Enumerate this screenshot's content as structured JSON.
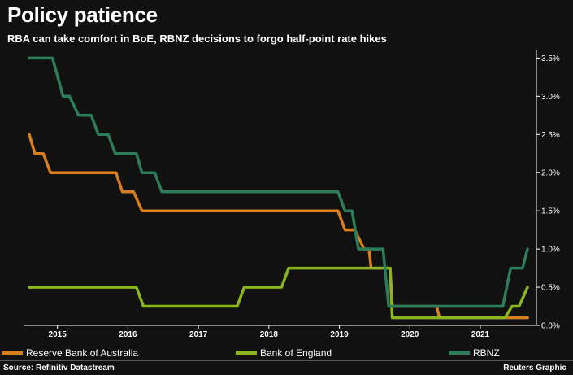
{
  "header": {
    "title": "Policy patience",
    "subtitle": "RBA can take comfort in BoE, RBNZ decisions to forgo half-point rate hikes"
  },
  "footer": {
    "source": "Source: Refinitiv Datastream",
    "credit": "Reuters Graphic"
  },
  "chart_data": {
    "type": "line",
    "title": "Policy patience",
    "subtitle": "RBA can take comfort in BoE, RBNZ decisions to forgo half-point rate hikes",
    "xlabel": "",
    "ylabel": "",
    "xlim": [
      2014.6,
      2021.75
    ],
    "ylim": [
      0,
      3.6
    ],
    "x_ticks": [
      2015,
      2016,
      2017,
      2018,
      2019,
      2020,
      2021
    ],
    "x_tick_labels": [
      "2015",
      "2016",
      "2017",
      "2018",
      "2019",
      "2020",
      "2021"
    ],
    "y_ticks": [
      0,
      0.5,
      1.0,
      1.5,
      2.0,
      2.5,
      3.0,
      3.5
    ],
    "y_tick_labels": [
      "0.0%",
      "0.5%",
      "1.0%",
      "1.5%",
      "2.0%",
      "2.5%",
      "3.0%",
      "3.5%"
    ],
    "y_axis_side": "right",
    "grid": false,
    "legend_position": "bottom",
    "series": [
      {
        "name": "Reserve Bank of Australia",
        "color": "#d97e1c",
        "points": [
          [
            2014.6,
            2.5
          ],
          [
            2014.68,
            2.25
          ],
          [
            2014.8,
            2.25
          ],
          [
            2014.9,
            2.0
          ],
          [
            2015.83,
            2.0
          ],
          [
            2015.92,
            1.75
          ],
          [
            2016.08,
            1.75
          ],
          [
            2016.2,
            1.5
          ],
          [
            2018.98,
            1.5
          ],
          [
            2019.08,
            1.25
          ],
          [
            2019.22,
            1.25
          ],
          [
            2019.35,
            1.0
          ],
          [
            2019.42,
            1.0
          ],
          [
            2019.45,
            0.75
          ],
          [
            2019.72,
            0.75
          ],
          [
            2019.75,
            0.25
          ],
          [
            2020.38,
            0.25
          ],
          [
            2020.42,
            0.1
          ],
          [
            2021.67,
            0.1
          ]
        ]
      },
      {
        "name": "Bank of England",
        "color": "#8bb51d",
        "points": [
          [
            2014.6,
            0.5
          ],
          [
            2016.12,
            0.5
          ],
          [
            2016.22,
            0.25
          ],
          [
            2017.55,
            0.25
          ],
          [
            2017.65,
            0.5
          ],
          [
            2018.18,
            0.5
          ],
          [
            2018.28,
            0.75
          ],
          [
            2019.72,
            0.75
          ],
          [
            2019.75,
            0.1
          ],
          [
            2021.35,
            0.1
          ],
          [
            2021.45,
            0.25
          ],
          [
            2021.55,
            0.25
          ],
          [
            2021.67,
            0.5
          ]
        ]
      },
      {
        "name": "RBNZ",
        "color": "#2e7d5a",
        "points": [
          [
            2014.6,
            3.5
          ],
          [
            2014.93,
            3.5
          ],
          [
            2015.08,
            3.0
          ],
          [
            2015.17,
            3.0
          ],
          [
            2015.3,
            2.75
          ],
          [
            2015.48,
            2.75
          ],
          [
            2015.58,
            2.5
          ],
          [
            2015.72,
            2.5
          ],
          [
            2015.82,
            2.25
          ],
          [
            2016.12,
            2.25
          ],
          [
            2016.2,
            2.0
          ],
          [
            2016.38,
            2.0
          ],
          [
            2016.48,
            1.75
          ],
          [
            2018.98,
            1.75
          ],
          [
            2019.08,
            1.5
          ],
          [
            2019.18,
            1.5
          ],
          [
            2019.27,
            1.0
          ],
          [
            2019.62,
            1.0
          ],
          [
            2019.7,
            0.25
          ],
          [
            2021.32,
            0.25
          ],
          [
            2021.43,
            0.75
          ],
          [
            2021.6,
            0.75
          ],
          [
            2021.67,
            1.0
          ]
        ]
      }
    ]
  }
}
